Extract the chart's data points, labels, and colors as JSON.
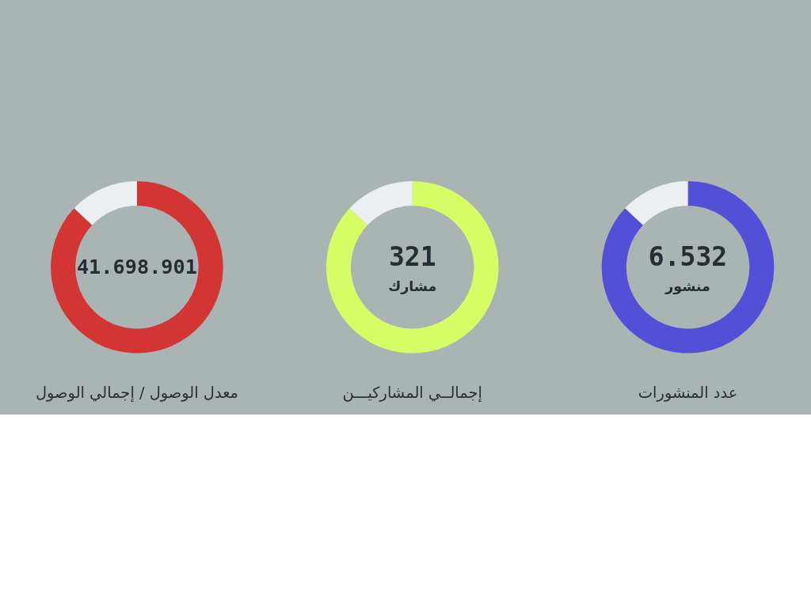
{
  "chart_data": [
    {
      "type": "donut",
      "title": "معدل الوصول / إجمالي الوصول",
      "categories": [
        null,
        null
      ],
      "values": [
        87,
        13
      ],
      "colors": [
        "#d33535",
        "#eceff2"
      ],
      "annotations": [
        "41.698.901"
      ]
    },
    {
      "type": "donut",
      "title": "إجمالــي المشاركيـــن",
      "categories": [
        null,
        null
      ],
      "values": [
        87,
        13
      ],
      "colors": [
        "#d4fd66",
        "#eceff2"
      ],
      "annotations": [
        "321",
        "مشارك"
      ]
    },
    {
      "type": "donut",
      "title": "عدد المنشورات",
      "categories": [
        null,
        null
      ],
      "values": [
        87,
        13
      ],
      "colors": [
        "#5250d6",
        "#eceff2"
      ],
      "annotations": [
        "6.532",
        "منشور"
      ]
    }
  ]
}
